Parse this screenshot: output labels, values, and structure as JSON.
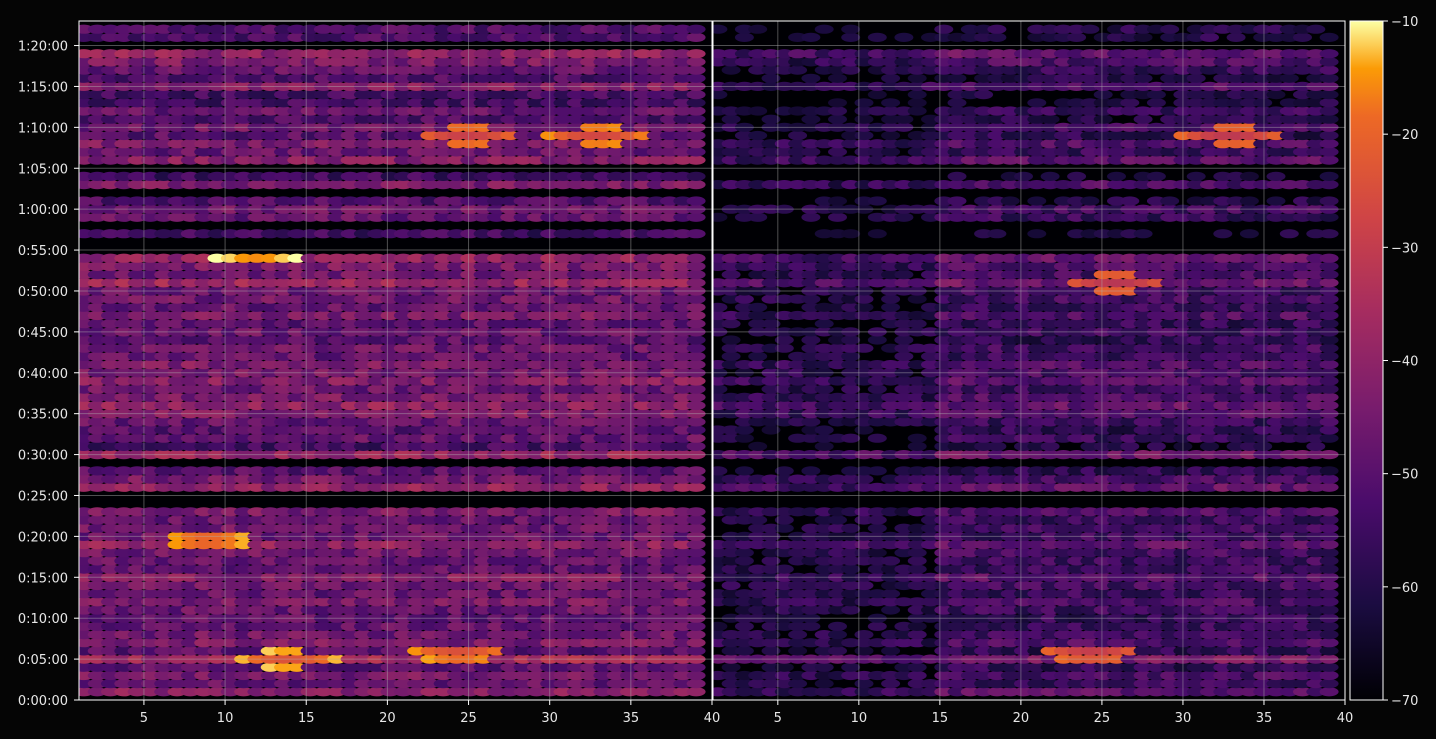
{
  "chart_data": {
    "type": "heatmap",
    "title": "",
    "xlabel": "",
    "ylabel": "",
    "panels": [
      {
        "x_range": [
          1,
          40
        ],
        "x_ticks": [
          "5",
          "10",
          "15",
          "20",
          "25",
          "30",
          "35",
          "40"
        ]
      },
      {
        "x_range": [
          1,
          40
        ],
        "x_ticks": [
          "5",
          "10",
          "15",
          "20",
          "25",
          "30",
          "35",
          "40"
        ]
      }
    ],
    "y_ticks": [
      "0:00:00",
      "0:05:00",
      "0:10:00",
      "0:15:00",
      "0:20:00",
      "0:25:00",
      "0:30:00",
      "0:35:00",
      "0:40:00",
      "0:45:00",
      "0:50:00",
      "0:55:00",
      "1:00:00",
      "1:05:00",
      "1:10:00",
      "1:15:00",
      "1:20:00"
    ],
    "y_range_seconds": [
      0,
      4980
    ],
    "grid": true,
    "colormap": "inferno",
    "colorbar": {
      "range": [
        -70,
        -10
      ],
      "ticks": [
        "−10",
        "−20",
        "−30",
        "−40",
        "−50",
        "−60",
        "−70"
      ]
    },
    "band_profile": {
      "comment_free": true,
      "rows_minute": [
        1,
        2,
        3,
        4,
        5,
        6,
        7,
        8,
        9,
        10,
        11,
        12,
        13,
        14,
        15,
        16,
        17,
        18,
        19,
        20,
        21,
        22,
        23,
        26,
        27,
        28,
        30,
        31,
        32,
        33,
        34,
        35,
        36,
        37,
        38,
        39,
        40,
        41,
        42,
        43,
        44,
        45,
        46,
        47,
        48,
        49,
        50,
        51,
        52,
        53,
        54,
        57,
        59,
        60,
        61,
        63,
        64,
        66,
        67,
        68,
        69,
        70,
        71,
        72,
        73,
        74,
        75,
        76,
        77,
        78,
        79,
        81,
        82
      ],
      "rows_level_db": [
        -42,
        -48,
        -45,
        -50,
        -36,
        -50,
        -44,
        -46,
        -48,
        -49,
        -47,
        -44,
        -48,
        -46,
        -42,
        -48,
        -47,
        -46,
        -40,
        -47,
        -46,
        -48,
        -44,
        -40,
        -45,
        -50,
        -38,
        -54,
        -48,
        -50,
        -48,
        -42,
        -40,
        -44,
        -47,
        -42,
        -45,
        -43,
        -48,
        -46,
        -50,
        -47,
        -49,
        -44,
        -48,
        -46,
        -47,
        -38,
        -46,
        -44,
        -40,
        -55,
        -48,
        -46,
        -52,
        -44,
        -55,
        -42,
        -48,
        -44,
        -50,
        -46,
        -52,
        -48,
        -54,
        -54,
        -42,
        -52,
        -48,
        -44,
        -40,
        -52,
        -52
      ]
    },
    "hotspots": [
      {
        "panel": 0,
        "x": 12,
        "minute": 54.5,
        "level": -18
      },
      {
        "panel": 0,
        "x": 9,
        "minute": 19.5,
        "level": -22
      },
      {
        "panel": 0,
        "x": 14,
        "minute": 5,
        "level": -24
      },
      {
        "panel": 0,
        "x": 24.5,
        "minute": 5.8,
        "level": -25
      },
      {
        "panel": 0,
        "x": 33,
        "minute": 69,
        "level": -27
      },
      {
        "panel": 0,
        "x": 25,
        "minute": 69,
        "level": -29
      },
      {
        "panel": 1,
        "x": 24.5,
        "minute": 5.8,
        "level": -30
      },
      {
        "panel": 1,
        "x": 33,
        "minute": 69,
        "level": -31
      },
      {
        "panel": 1,
        "x": 26,
        "minute": 51,
        "level": -32
      }
    ]
  }
}
